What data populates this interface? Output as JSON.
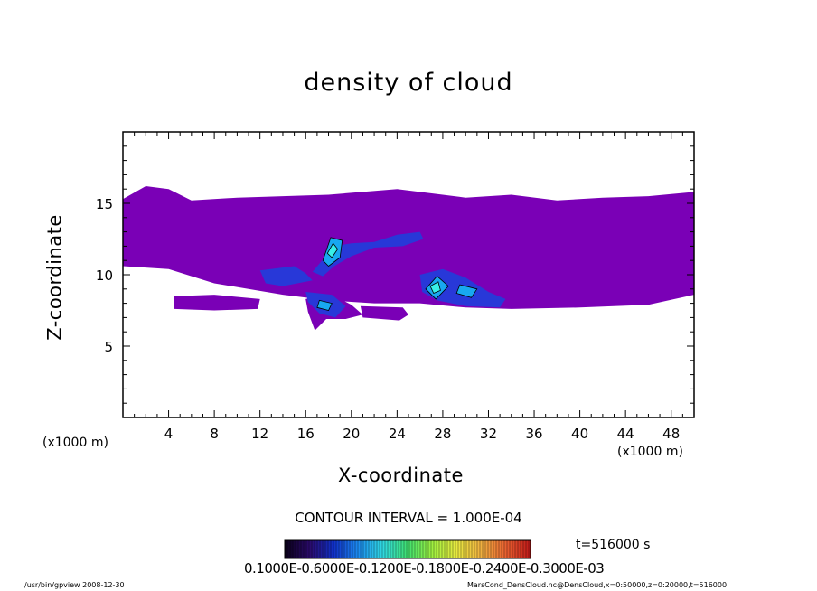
{
  "chart_data": {
    "type": "heatmap",
    "title": "density of cloud",
    "xlabel": "X-coordinate",
    "ylabel": "Z-coordinate",
    "x_unit": "(x1000 m)",
    "y_unit": "(x1000 m)",
    "xlim": [
      0,
      50
    ],
    "ylim": [
      0,
      20
    ],
    "xticks": [
      4,
      8,
      12,
      16,
      20,
      24,
      28,
      32,
      36,
      40,
      44,
      48
    ],
    "yticks": [
      5,
      10,
      15
    ],
    "contour_interval": "CONTOUR INTERVAL = 1.000E-04",
    "time": "t=516000 s",
    "colorbar_labels": "0.1000E-0.6000E-0.1200E-0.1800E-0.2400E-0.3000E-03",
    "colorbar_colors": [
      "#0a0018",
      "#2a0a6a",
      "#1030c8",
      "#1c8cf0",
      "#30d8e0",
      "#40e070",
      "#9ef040",
      "#e8e840",
      "#f0b040",
      "#e86030",
      "#c01818"
    ],
    "cloud_colors": {
      "low": "#7a00b6",
      "mid": "#2838d8",
      "high": "#18a8f0",
      "peak": "#38f0e8"
    },
    "cloud_regions": [
      {
        "level": "low",
        "points": [
          [
            0,
            15.3
          ],
          [
            2,
            16.2
          ],
          [
            4,
            16.0
          ],
          [
            6,
            15.2
          ],
          [
            10,
            15.4
          ],
          [
            14,
            15.5
          ],
          [
            18,
            15.6
          ],
          [
            24,
            16.0
          ],
          [
            30,
            15.4
          ],
          [
            34,
            15.6
          ],
          [
            38,
            15.2
          ],
          [
            42,
            15.4
          ],
          [
            46,
            15.5
          ],
          [
            50,
            15.8
          ],
          [
            50,
            8.6
          ],
          [
            46,
            7.9
          ],
          [
            40,
            7.7
          ],
          [
            34,
            7.6
          ],
          [
            30,
            7.7
          ],
          [
            26,
            8.0
          ],
          [
            22,
            8.0
          ],
          [
            18,
            8.2
          ],
          [
            14,
            8.6
          ],
          [
            8,
            9.4
          ],
          [
            4,
            10.4
          ],
          [
            0,
            10.6
          ]
        ]
      },
      {
        "level": "low",
        "points": [
          [
            4.5,
            8.5
          ],
          [
            8,
            8.6
          ],
          [
            12,
            8.3
          ],
          [
            11.8,
            7.6
          ],
          [
            8,
            7.5
          ],
          [
            4.5,
            7.6
          ]
        ]
      },
      {
        "level": "low",
        "points": [
          [
            16,
            8.3
          ],
          [
            18,
            8.7
          ],
          [
            20,
            7.9
          ],
          [
            21,
            7.2
          ],
          [
            19.5,
            6.9
          ],
          [
            17.8,
            6.9
          ],
          [
            16.8,
            6.1
          ],
          [
            16.2,
            7.4
          ]
        ]
      },
      {
        "level": "low",
        "points": [
          [
            20.8,
            7.8
          ],
          [
            24.5,
            7.7
          ],
          [
            25,
            7.2
          ],
          [
            24.2,
            6.8
          ],
          [
            21,
            7.0
          ]
        ]
      },
      {
        "level": "mid",
        "points": [
          [
            16.6,
            10.2
          ],
          [
            18.5,
            12.0
          ],
          [
            20,
            12.2
          ],
          [
            22,
            12.3
          ],
          [
            24,
            12.8
          ],
          [
            26,
            13.0
          ],
          [
            26.3,
            12.5
          ],
          [
            24.5,
            12.0
          ],
          [
            22,
            11.9
          ],
          [
            20,
            11.3
          ],
          [
            18.5,
            10.6
          ],
          [
            17.5,
            9.9
          ]
        ]
      },
      {
        "level": "mid",
        "points": [
          [
            26,
            10.0
          ],
          [
            28,
            10.4
          ],
          [
            30,
            9.8
          ],
          [
            32,
            8.8
          ],
          [
            33.5,
            8.3
          ],
          [
            33,
            7.7
          ],
          [
            30,
            7.8
          ],
          [
            27.5,
            8.2
          ],
          [
            26.2,
            8.8
          ]
        ]
      },
      {
        "level": "mid",
        "points": [
          [
            12,
            10.3
          ],
          [
            15,
            10.6
          ],
          [
            16,
            10.1
          ],
          [
            16.6,
            9.6
          ],
          [
            14,
            9.2
          ],
          [
            12.5,
            9.4
          ]
        ]
      },
      {
        "level": "mid",
        "points": [
          [
            16,
            8.8
          ],
          [
            18.3,
            8.6
          ],
          [
            19.5,
            7.8
          ],
          [
            18.6,
            7.0
          ],
          [
            17.2,
            7.3
          ],
          [
            16.2,
            8.1
          ]
        ]
      },
      {
        "level": "high",
        "points": [
          [
            17.5,
            11.0
          ],
          [
            18.2,
            12.6
          ],
          [
            19.2,
            12.4
          ],
          [
            19.0,
            11.2
          ],
          [
            18.0,
            10.6
          ]
        ]
      },
      {
        "level": "high",
        "points": [
          [
            26.5,
            9.0
          ],
          [
            27.5,
            9.9
          ],
          [
            28.5,
            9.2
          ],
          [
            27.4,
            8.3
          ]
        ]
      },
      {
        "level": "high",
        "points": [
          [
            29.5,
            9.3
          ],
          [
            31.0,
            9.0
          ],
          [
            30.5,
            8.4
          ],
          [
            29.2,
            8.7
          ]
        ]
      },
      {
        "level": "high",
        "points": [
          [
            17.2,
            8.2
          ],
          [
            18.3,
            8.0
          ],
          [
            18.0,
            7.5
          ],
          [
            17.0,
            7.7
          ]
        ]
      },
      {
        "level": "peak",
        "points": [
          [
            17.9,
            11.5
          ],
          [
            18.4,
            12.2
          ],
          [
            18.8,
            11.8
          ],
          [
            18.3,
            11.2
          ]
        ]
      },
      {
        "level": "peak",
        "points": [
          [
            26.9,
            9.2
          ],
          [
            27.6,
            9.5
          ],
          [
            27.8,
            8.9
          ],
          [
            27.2,
            8.7
          ]
        ]
      }
    ]
  },
  "footer": {
    "left": "/usr/bin/gpview  2008-12-30",
    "right": "MarsCond_DensCloud.nc@DensCloud,x=0:50000,z=0:20000,t=516000"
  }
}
